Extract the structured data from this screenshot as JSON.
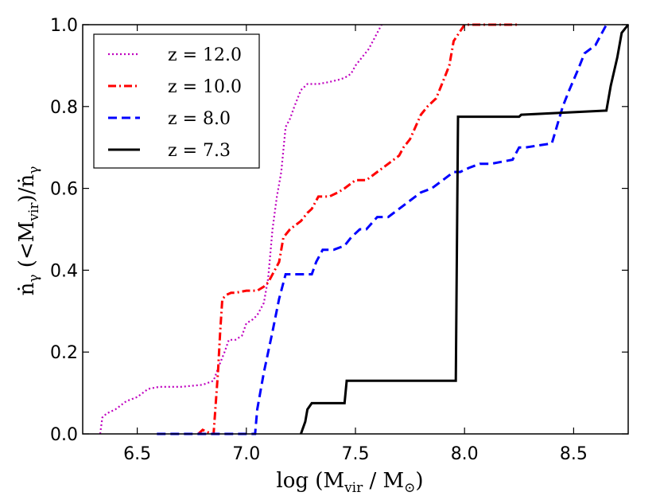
{
  "chart_data": {
    "type": "line",
    "xlabel": "log (M_vir / M_⊙)",
    "ylabel": "ṅ_γ (<M_vir)/ṅ_γ",
    "xlim": [
      6.25,
      8.75
    ],
    "ylim": [
      0.0,
      1.0
    ],
    "xticks": [
      6.5,
      7.0,
      7.5,
      8.0,
      8.5
    ],
    "xtick_labels": [
      "6.5",
      "7.0",
      "7.5",
      "8.0",
      "8.5"
    ],
    "yticks": [
      0.0,
      0.2,
      0.4,
      0.6,
      0.8,
      1.0
    ],
    "ytick_labels": [
      "0.0",
      "0.2",
      "0.4",
      "0.6",
      "0.8",
      "1.0"
    ],
    "grid": false,
    "legend_position": "top-left",
    "series": [
      {
        "name": "z = 12.0",
        "color": "#bf00bf",
        "style": "dotted",
        "x": [
          6.33,
          6.34,
          6.36,
          6.4,
          6.45,
          6.5,
          6.55,
          6.6,
          6.65,
          6.7,
          6.8,
          6.85,
          6.87,
          6.9,
          6.92,
          6.95,
          6.98,
          7.0,
          7.03,
          7.05,
          7.08,
          7.1,
          7.12,
          7.14,
          7.16,
          7.18,
          7.2,
          7.22,
          7.25,
          7.28,
          7.33,
          7.38,
          7.42,
          7.45,
          7.48,
          7.5,
          7.53,
          7.56,
          7.58,
          7.6,
          7.62
        ],
        "y": [
          0.0,
          0.04,
          0.05,
          0.06,
          0.08,
          0.09,
          0.11,
          0.115,
          0.115,
          0.115,
          0.12,
          0.13,
          0.16,
          0.2,
          0.23,
          0.23,
          0.24,
          0.27,
          0.28,
          0.29,
          0.32,
          0.38,
          0.5,
          0.58,
          0.64,
          0.75,
          0.77,
          0.8,
          0.84,
          0.855,
          0.855,
          0.86,
          0.865,
          0.87,
          0.88,
          0.9,
          0.92,
          0.94,
          0.96,
          0.98,
          1.0
        ]
      },
      {
        "name": "z = 10.0",
        "color": "#ff0000",
        "style": "dashdot",
        "x": [
          6.78,
          6.8,
          6.84,
          6.85,
          6.87,
          6.88,
          6.89,
          6.91,
          6.93,
          6.95,
          7.0,
          7.05,
          7.08,
          7.1,
          7.13,
          7.15,
          7.17,
          7.2,
          7.25,
          7.28,
          7.3,
          7.33,
          7.38,
          7.42,
          7.45,
          7.5,
          7.55,
          7.6,
          7.65,
          7.7,
          7.72,
          7.75,
          7.8,
          7.83,
          7.87,
          7.9,
          7.93,
          7.95,
          8.0,
          8.1,
          8.25
        ],
        "y": [
          0.0,
          0.01,
          0.0,
          0.0,
          0.15,
          0.25,
          0.33,
          0.34,
          0.345,
          0.345,
          0.35,
          0.35,
          0.36,
          0.37,
          0.4,
          0.42,
          0.48,
          0.5,
          0.52,
          0.54,
          0.55,
          0.58,
          0.58,
          0.59,
          0.6,
          0.62,
          0.62,
          0.64,
          0.66,
          0.68,
          0.7,
          0.72,
          0.78,
          0.8,
          0.82,
          0.86,
          0.9,
          0.96,
          1.0,
          1.0,
          1.0
        ]
      },
      {
        "name": "z = 8.0",
        "color": "#0000ff",
        "style": "dashed",
        "x": [
          6.59,
          6.8,
          7.04,
          7.05,
          7.08,
          7.12,
          7.15,
          7.18,
          7.2,
          7.25,
          7.3,
          7.32,
          7.35,
          7.4,
          7.45,
          7.48,
          7.52,
          7.55,
          7.6,
          7.65,
          7.7,
          7.75,
          7.8,
          7.85,
          7.9,
          7.95,
          7.98,
          8.02,
          8.07,
          8.12,
          8.22,
          8.25,
          8.28,
          8.4,
          8.45,
          8.48,
          8.52,
          8.55,
          8.6,
          8.65
        ],
        "y": [
          0.0,
          0.0,
          0.0,
          0.06,
          0.15,
          0.25,
          0.33,
          0.39,
          0.39,
          0.39,
          0.39,
          0.42,
          0.45,
          0.45,
          0.46,
          0.48,
          0.5,
          0.5,
          0.53,
          0.53,
          0.55,
          0.57,
          0.59,
          0.6,
          0.62,
          0.64,
          0.64,
          0.65,
          0.66,
          0.66,
          0.67,
          0.7,
          0.7,
          0.71,
          0.8,
          0.84,
          0.89,
          0.93,
          0.95,
          1.0
        ]
      },
      {
        "name": "z = 7.3",
        "color": "#000000",
        "style": "solid",
        "x": [
          7.25,
          7.27,
          7.28,
          7.3,
          7.45,
          7.46,
          7.96,
          7.97,
          8.25,
          8.26,
          8.65,
          8.67,
          8.7,
          8.72,
          8.75
        ],
        "y": [
          0.0,
          0.03,
          0.06,
          0.075,
          0.075,
          0.13,
          0.13,
          0.775,
          0.775,
          0.78,
          0.79,
          0.85,
          0.92,
          0.98,
          1.0
        ]
      }
    ]
  }
}
